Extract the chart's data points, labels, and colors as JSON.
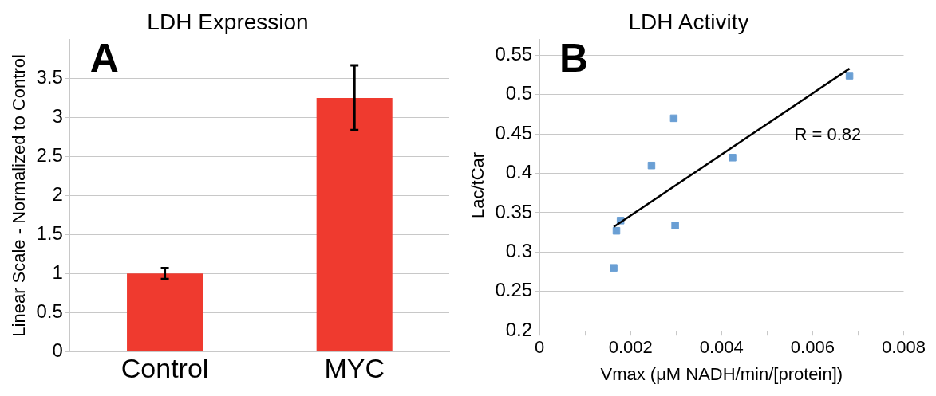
{
  "chart_data": [
    {
      "type": "bar",
      "title": "LDH Expression",
      "ylabel": "Linear Scale - Normalized to Control",
      "categories": [
        "Control",
        "MYC"
      ],
      "values": [
        1,
        3.25
      ],
      "errors": [
        0.07,
        [
          2.84,
          3.67
        ]
      ],
      "color": "#ef3a2f",
      "ylim": [
        0,
        4
      ],
      "yticks": [
        0,
        0.5,
        1,
        1.5,
        2,
        2.5,
        3,
        3.5
      ],
      "grid": "y",
      "legend": false,
      "annotations": [
        "A"
      ]
    },
    {
      "type": "scatter",
      "title": "LDH Activity",
      "xlabel": "Vmax (μM NADH/min/[protein])",
      "ylabel": "Lac/tCar",
      "marker": "square",
      "grid": "y",
      "legend": false,
      "xlim": [
        0,
        0.008
      ],
      "xticks": [
        0,
        {
          "value": 0.001,
          "label": null
        },
        0.002,
        {
          "value": 0.003,
          "label": null
        },
        0.004,
        {
          "value": 0.005,
          "label": null
        },
        0.006,
        {
          "value": 0.007,
          "label": null
        },
        0.008
      ],
      "ylim": [
        0.2,
        0.57
      ],
      "yticks": [
        0.2,
        0.25,
        0.3,
        0.35,
        0.4,
        0.45,
        0.5,
        0.55
      ],
      "series": [
        {
          "color": "#6a9fd4",
          "x": [
            0.00163,
            0.00169,
            0.00178,
            0.00246,
            0.00295,
            0.00298,
            0.00424,
            0.00681
          ],
          "values": [
            0.28,
            0.327,
            0.34,
            0.41,
            0.47,
            0.334,
            0.42,
            0.524
          ]
        },
        {
          "type": "line",
          "marker": "none",
          "color": "#000000",
          "x": [
            0.00163,
            0.00681
          ],
          "values": [
            0.332,
            0.533
          ]
        }
      ],
      "annotations": [
        "B",
        "R = 0.82"
      ]
    }
  ]
}
